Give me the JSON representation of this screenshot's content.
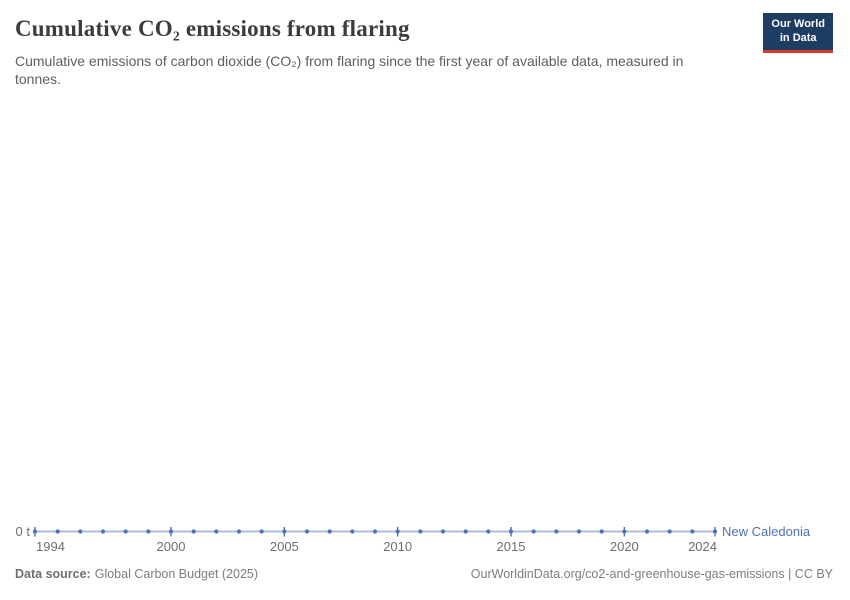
{
  "header": {
    "title": "Cumulative CO₂ emissions from flaring",
    "subtitle": "Cumulative emissions of carbon dioxide (CO₂) from flaring since the first year of available data, measured in tonnes.",
    "logo_line1": "Our World",
    "logo_line2": "in Data"
  },
  "chart_data": {
    "type": "line",
    "title": "Cumulative CO₂ emissions from flaring",
    "ylabel": "tonnes",
    "x_range": [
      1994,
      2024
    ],
    "ylim": [
      0,
      0
    ],
    "grid": false,
    "x_ticks": [
      "1994",
      "2000",
      "2005",
      "2010",
      "2015",
      "2020",
      "2024"
    ],
    "y_tick_label": "0 t",
    "categories": [
      1994,
      1995,
      1996,
      1997,
      1998,
      1999,
      2000,
      2001,
      2002,
      2003,
      2004,
      2005,
      2006,
      2007,
      2008,
      2009,
      2010,
      2011,
      2012,
      2013,
      2014,
      2015,
      2016,
      2017,
      2018,
      2019,
      2020,
      2021,
      2022,
      2023,
      2024
    ],
    "series": [
      {
        "name": "New Caledonia",
        "values": [
          0,
          0,
          0,
          0,
          0,
          0,
          0,
          0,
          0,
          0,
          0,
          0,
          0,
          0,
          0,
          0,
          0,
          0,
          0,
          0,
          0,
          0,
          0,
          0,
          0,
          0,
          0,
          0,
          0,
          0,
          0
        ]
      }
    ],
    "legend_position": "end-of-line",
    "colors": {
      "line": "#a3b9dc",
      "marker": "#4d72b3",
      "series_label": "#4d72b3",
      "axis_text": "#6e6e6e"
    }
  },
  "footer": {
    "source_label": "Data source:",
    "source_value": "Global Carbon Budget (2025)",
    "credit": "OurWorldinData.org/co2-and-greenhouse-gas-emissions | CC BY"
  },
  "brand": {
    "navy": "#1d3d63",
    "red": "#d93a2d"
  }
}
